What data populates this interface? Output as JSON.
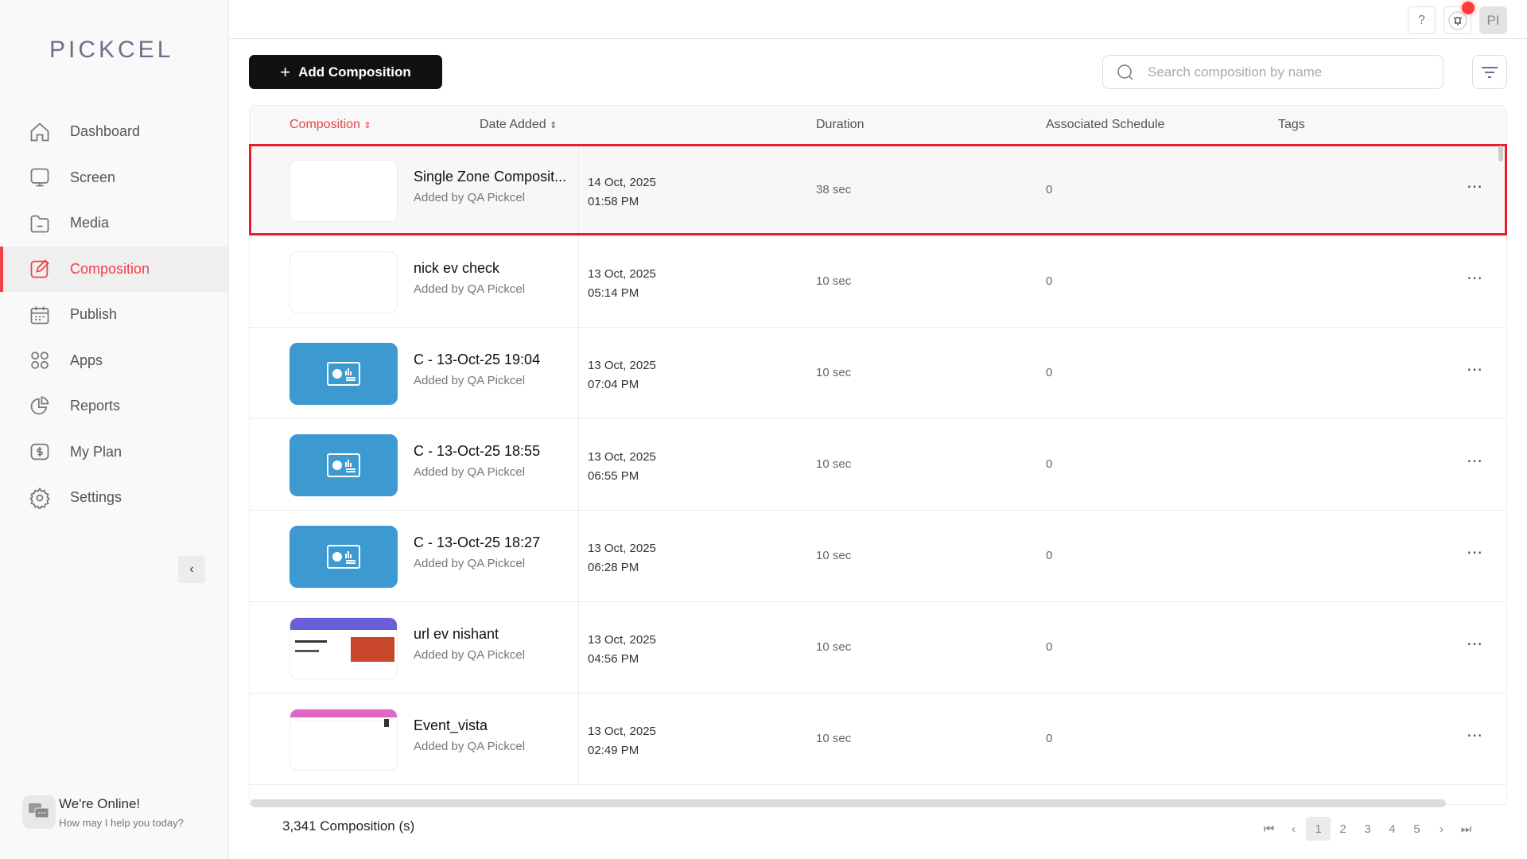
{
  "brand": {
    "logo": "PICKCEL"
  },
  "sidebar": {
    "items": [
      {
        "label": "Dashboard",
        "icon": "home-icon"
      },
      {
        "label": "Screen",
        "icon": "monitor-icon"
      },
      {
        "label": "Media",
        "icon": "folder-icon"
      },
      {
        "label": "Composition",
        "icon": "edit-icon",
        "active": true
      },
      {
        "label": "Publish",
        "icon": "calendar-icon"
      },
      {
        "label": "Apps",
        "icon": "grid-icon"
      },
      {
        "label": "Reports",
        "icon": "pie-chart-icon"
      },
      {
        "label": "My Plan",
        "icon": "dollar-icon"
      },
      {
        "label": "Settings",
        "icon": "gear-icon"
      }
    ]
  },
  "chat": {
    "title": "We're Online!",
    "subtitle": "How may I help you today?"
  },
  "topbar": {
    "help": "?",
    "avatar": "PI"
  },
  "toolbar": {
    "add_label": "Add Composition",
    "search_placeholder": "Search composition by name"
  },
  "table": {
    "columns": {
      "composition": "Composition",
      "date": "Date Added",
      "duration": "Duration",
      "schedule": "Associated Schedule",
      "tags": "Tags"
    },
    "rows": [
      {
        "name": "Single Zone Composit...",
        "by": "Added by QA Pickcel",
        "date": "14 Oct, 2025",
        "time": "01:58 PM",
        "duration": "38 sec",
        "schedule": "0",
        "thumb": "blank",
        "selected": true
      },
      {
        "name": "nick ev check",
        "by": "Added by QA Pickcel",
        "date": "13 Oct, 2025",
        "time": "05:14 PM",
        "duration": "10 sec",
        "schedule": "0",
        "thumb": "blank"
      },
      {
        "name": "C - 13-Oct-25 19:04",
        "by": "Added by QA Pickcel",
        "date": "13 Oct, 2025",
        "time": "07:04 PM",
        "duration": "10 sec",
        "schedule": "0",
        "thumb": "blue"
      },
      {
        "name": "C - 13-Oct-25 18:55",
        "by": "Added by QA Pickcel",
        "date": "13 Oct, 2025",
        "time": "06:55 PM",
        "duration": "10 sec",
        "schedule": "0",
        "thumb": "blue"
      },
      {
        "name": "C - 13-Oct-25 18:27",
        "by": "Added by QA Pickcel",
        "date": "13 Oct, 2025",
        "time": "06:28 PM",
        "duration": "10 sec",
        "schedule": "0",
        "thumb": "blue"
      },
      {
        "name": "url ev nishant",
        "by": "Added by QA Pickcel",
        "date": "13 Oct, 2025",
        "time": "04:56 PM",
        "duration": "10 sec",
        "schedule": "0",
        "thumb": "event"
      },
      {
        "name": "Event_vista",
        "by": "Added by QA Pickcel",
        "date": "13 Oct, 2025",
        "time": "02:49 PM",
        "duration": "10 sec",
        "schedule": "0",
        "thumb": "hotel"
      }
    ]
  },
  "footer": {
    "count": "3,341 Composition (s)",
    "pages": [
      "1",
      "2",
      "3",
      "4",
      "5"
    ],
    "current_page": "1"
  },
  "colors": {
    "accent": "#ef4148",
    "selection_border": "#e61e2a",
    "thumb_blue": "#3c9ad0",
    "button_dark": "#111111"
  }
}
